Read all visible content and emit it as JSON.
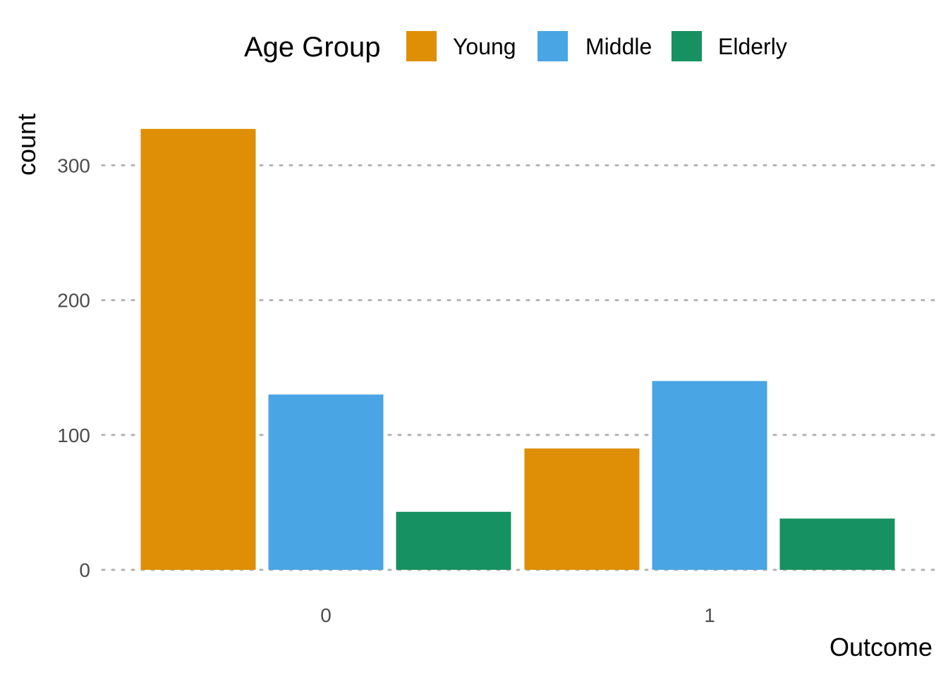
{
  "chart_data": {
    "type": "bar",
    "categories": [
      "0",
      "1"
    ],
    "series": [
      {
        "name": "Young",
        "values": [
          327,
          90
        ],
        "color": "#DE8F05"
      },
      {
        "name": "Middle",
        "values": [
          130,
          140
        ],
        "color": "#49A5E3"
      },
      {
        "name": "Elderly",
        "values": [
          43,
          38
        ],
        "color": "#169161"
      }
    ],
    "xlabel": "Outcome",
    "ylabel": "count",
    "yticks": [
      0,
      100,
      200,
      300
    ],
    "ylim": [
      0,
      344
    ],
    "grid": "horizontal-dotted",
    "legend": {
      "title": "Age Group",
      "position": "top"
    }
  }
}
